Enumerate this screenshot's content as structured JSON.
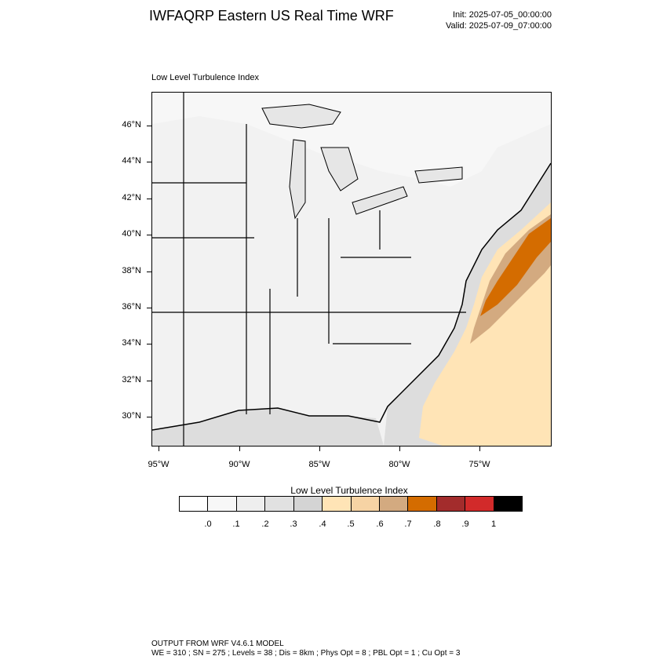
{
  "header": {
    "title": "IWFAQRP Eastern US Real Time WRF",
    "init": "Init: 2025-07-05_00:00:00",
    "valid": "Valid: 2025-07-09_07:00:00"
  },
  "map": {
    "field_label": "Low Level Turbulence Index",
    "lat_ticks": [
      "46°N",
      "44°N",
      "42°N",
      "40°N",
      "38°N",
      "36°N",
      "34°N",
      "32°N",
      "30°N"
    ],
    "lon_ticks": [
      "95°W",
      "90°W",
      "85°W",
      "80°W",
      "75°W"
    ],
    "colors": {
      "land": "#f2f2f2",
      "land_light": "#f7f7f7",
      "water": "#dddddd",
      "lake": "#e6e6e6",
      "boundary": "#000000"
    }
  },
  "colorbar": {
    "title": "Low Level Turbulence Index",
    "colors": [
      "#ffffff",
      "#f7f7f7",
      "#eeeeee",
      "#e1e1e1",
      "#d4d4d4",
      "#ffe4b6",
      "#f6d3a4",
      "#d3aa80",
      "#d46c00",
      "#a32c2c",
      "#d22a2a",
      "#000000"
    ],
    "labels": [
      ".0",
      ".1",
      ".2",
      ".3",
      ".4",
      ".5",
      ".6",
      ".7",
      ".8",
      ".9",
      "1"
    ]
  },
  "footer": {
    "line1": "OUTPUT FROM WRF V4.6.1 MODEL",
    "line2": "WE = 310 ; SN = 275 ; Levels = 38 ; Dis = 8km ; Phys Opt = 8 ; PBL Opt = 1 ; Cu Opt = 3"
  }
}
